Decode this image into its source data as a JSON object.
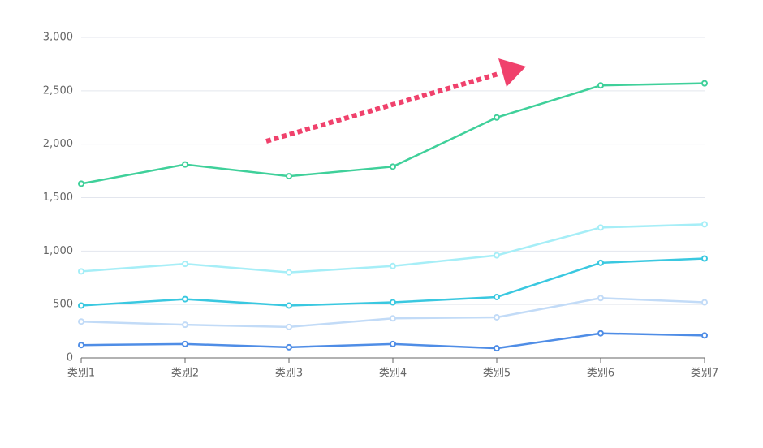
{
  "chart_data": {
    "type": "line",
    "categories": [
      "类别1",
      "类别2",
      "类别3",
      "类别4",
      "类别5",
      "类别6",
      "类别7"
    ],
    "series": [
      {
        "color": "#3fd09a",
        "values": [
          1630,
          1810,
          1700,
          1790,
          2250,
          2550,
          2570
        ]
      },
      {
        "color": "#a6eef7",
        "values": [
          810,
          880,
          800,
          860,
          960,
          1220,
          1250
        ]
      },
      {
        "color": "#3ac8e0",
        "values": [
          490,
          550,
          490,
          520,
          570,
          890,
          930
        ]
      },
      {
        "color": "#c2dbf7",
        "values": [
          340,
          310,
          290,
          370,
          380,
          560,
          520
        ]
      },
      {
        "color": "#4f8de6",
        "values": [
          120,
          130,
          100,
          130,
          90,
          230,
          210
        ]
      }
    ],
    "ylim": [
      0,
      3000
    ],
    "yticks": [
      0,
      500,
      {
        "value": 1000,
        "label": "1,000"
      },
      {
        "value": 1500,
        "label": "1,500"
      },
      {
        "value": 2000,
        "label": "2,000"
      },
      {
        "value": 2500,
        "label": "2,500"
      },
      {
        "value": 3000,
        "label": "3,000"
      }
    ],
    "grid": true
  }
}
